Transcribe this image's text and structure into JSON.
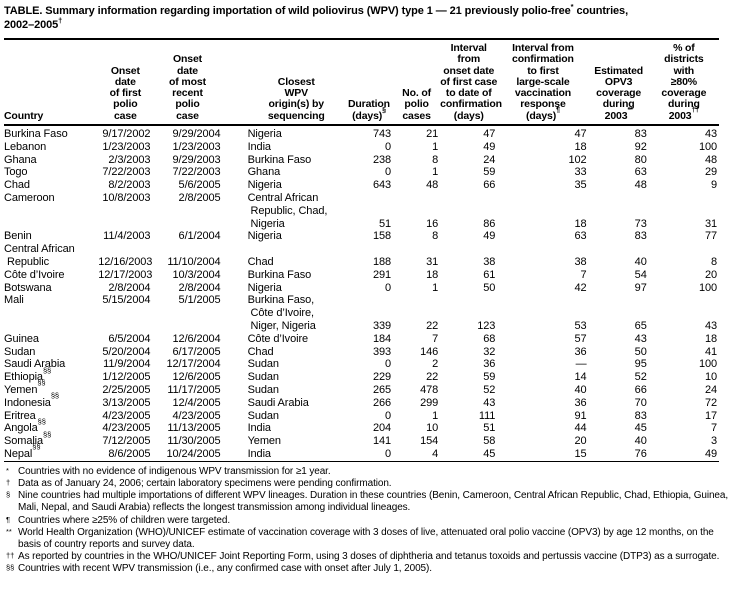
{
  "title": {
    "part1": "TABLE. Summary information regarding importation of wild poliovirus (WPV) type 1 — 21 previously polio-free",
    "sup1": "*",
    "part2": " countries,\n2002–2005",
    "sup2": "†"
  },
  "table": {
    "columns": [
      {
        "text": "Country",
        "sup": ""
      },
      {
        "text": "Onset\ndate\nof first\npolio\ncase",
        "sup": ""
      },
      {
        "text": "Onset\ndate\nof most\nrecent\npolio\ncase",
        "sup": ""
      },
      {
        "text": "Closest\nWPV\norigin(s) by\nsequencing",
        "sup": ""
      },
      {
        "text": "Duration\n(days)",
        "sup": "§"
      },
      {
        "text": "No. of\npolio\ncases",
        "sup": ""
      },
      {
        "text": "Interval\nfrom\nonset date\nof first case\nto date of\nconfirmation\n(days)",
        "sup": ""
      },
      {
        "text": "Interval from\nconfirmation\nto first\nlarge-scale\nvaccination\nresponse\n(days)",
        "sup": "¶"
      },
      {
        "text": "Estimated\nOPV3\ncoverage\nduring\n2003",
        "sup": "**"
      },
      {
        "text": "% of\ndistricts\nwith\n≥80%\ncoverage\nduring\n2003",
        "sup": "††"
      }
    ],
    "rows": [
      {
        "country": "Burkina Faso",
        "onset_first": "9/17/2002",
        "onset_recent": "9/29/2004",
        "origin": "Nigeria",
        "duration": "743",
        "cases": "21",
        "interval_confirm": "47",
        "interval_response": "47",
        "opv3": "83",
        "districts": "43"
      },
      {
        "country": "Lebanon",
        "onset_first": "1/23/2003",
        "onset_recent": "1/23/2003",
        "origin": "India",
        "duration": "0",
        "cases": "1",
        "interval_confirm": "49",
        "interval_response": "18",
        "opv3": "92",
        "districts": "100"
      },
      {
        "country": "Ghana",
        "onset_first": "2/3/2003",
        "onset_recent": "9/29/2003",
        "origin": "Burkina Faso",
        "duration": "238",
        "cases": "8",
        "interval_confirm": "24",
        "interval_response": "102",
        "opv3": "80",
        "districts": "48"
      },
      {
        "country": "Togo",
        "onset_first": "7/22/2003",
        "onset_recent": "7/22/2003",
        "origin": "Ghana",
        "duration": "0",
        "cases": "1",
        "interval_confirm": "59",
        "interval_response": "33",
        "opv3": "63",
        "districts": "29"
      },
      {
        "country": "Chad",
        "onset_first": "8/2/2003",
        "onset_recent": "5/6/2005",
        "origin": "Nigeria",
        "duration": "643",
        "cases": "48",
        "interval_confirm": "66",
        "interval_response": "35",
        "opv3": "48",
        "districts": "9"
      },
      {
        "country": "Cameroon",
        "onset_first": "10/8/2003",
        "onset_recent": "2/8/2005",
        "origin": "Central African\n Republic, Chad,\n Nigeria",
        "duration": "51",
        "cases": "16",
        "interval_confirm": "86",
        "interval_response": "18",
        "opv3": "73",
        "districts": "31",
        "rowClass": "v-bottom-nums"
      },
      {
        "country": "Benin",
        "onset_first": "11/4/2003",
        "onset_recent": "6/1/2004",
        "origin": "Nigeria",
        "duration": "158",
        "cases": "8",
        "interval_confirm": "49",
        "interval_response": "63",
        "opv3": "83",
        "districts": "77"
      },
      {
        "country": "Central African\n Republic",
        "onset_first": "12/16/2003",
        "onset_recent": "11/10/2004",
        "origin": "Chad",
        "duration": "188",
        "cases": "31",
        "interval_confirm": "38",
        "interval_response": "38",
        "opv3": "40",
        "districts": "8",
        "rowClass": "v-bottom-rest"
      },
      {
        "country": "Côte d’Ivoire",
        "onset_first": "12/17/2003",
        "onset_recent": "10/3/2004",
        "origin": "Burkina Faso",
        "duration": "291",
        "cases": "18",
        "interval_confirm": "61",
        "interval_response": "7",
        "opv3": "54",
        "districts": "20"
      },
      {
        "country": "Botswana",
        "onset_first": "2/8/2004",
        "onset_recent": "2/8/2004",
        "origin": "Nigeria",
        "duration": "0",
        "cases": "1",
        "interval_confirm": "50",
        "interval_response": "42",
        "opv3": "97",
        "districts": "100"
      },
      {
        "country": "Mali",
        "onset_first": "5/15/2004",
        "onset_recent": "5/1/2005",
        "origin": "Burkina Faso,\n Côte d’Ivoire,\n Niger, Nigeria",
        "duration": "339",
        "cases": "22",
        "interval_confirm": "123",
        "interval_response": "53",
        "opv3": "65",
        "districts": "43",
        "rowClass": "v-bottom-nums"
      },
      {
        "country": "Guinea",
        "onset_first": "6/5/2004",
        "onset_recent": "12/6/2004",
        "origin": "Côte d’Ivoire",
        "duration": "184",
        "cases": "7",
        "interval_confirm": "68",
        "interval_response": "57",
        "opv3": "43",
        "districts": "18"
      },
      {
        "country": "Sudan",
        "onset_first": "5/20/2004",
        "onset_recent": "6/17/2005",
        "origin": "Chad",
        "duration": "393",
        "cases": "146",
        "interval_confirm": "32",
        "interval_response": "36",
        "opv3": "50",
        "districts": "41"
      },
      {
        "country": "Saudi Arabia",
        "onset_first": "11/9/2004",
        "onset_recent": "12/17/2004",
        "origin": "Sudan",
        "duration": "0",
        "cases": "2",
        "interval_confirm": "36",
        "interval_response": "—",
        "opv3": "95",
        "districts": "100"
      },
      {
        "country": "Ethiopia",
        "country_sup": "§§",
        "onset_first": "1/12/2005",
        "onset_recent": "12/6/2005",
        "origin": "Sudan",
        "duration": "229",
        "cases": "22",
        "interval_confirm": "59",
        "interval_response": "14",
        "opv3": "52",
        "districts": "10"
      },
      {
        "country": "Yemen",
        "country_sup": "§§",
        "onset_first": "2/25/2005",
        "onset_recent": "11/17/2005",
        "origin": "Sudan",
        "duration": "265",
        "cases": "478",
        "interval_confirm": "52",
        "interval_response": "40",
        "opv3": "66",
        "districts": "24"
      },
      {
        "country": "Indonesia",
        "country_sup": "§§",
        "onset_first": "3/13/2005",
        "onset_recent": "12/4/2005",
        "origin": "Saudi Arabia",
        "duration": "266",
        "cases": "299",
        "interval_confirm": "43",
        "interval_response": "36",
        "opv3": "70",
        "districts": "72"
      },
      {
        "country": "Eritrea",
        "onset_first": "4/23/2005",
        "onset_recent": "4/23/2005",
        "origin": "Sudan",
        "duration": "0",
        "cases": "1",
        "interval_confirm": "111",
        "interval_response": "91",
        "opv3": "83",
        "districts": "17"
      },
      {
        "country": "Angola",
        "country_sup": "§§",
        "onset_first": "4/23/2005",
        "onset_recent": "11/13/2005",
        "origin": "India",
        "duration": "204",
        "cases": "10",
        "interval_confirm": "51",
        "interval_response": "44",
        "opv3": "45",
        "districts": "7"
      },
      {
        "country": "Somalia",
        "country_sup": "§§",
        "onset_first": "7/12/2005",
        "onset_recent": "11/30/2005",
        "origin": "Yemen",
        "duration": "141",
        "cases": "154",
        "interval_confirm": "58",
        "interval_response": "20",
        "opv3": "40",
        "districts": "3"
      },
      {
        "country": "Nepal",
        "country_sup": "§§",
        "onset_first": "8/6/2005",
        "onset_recent": "10/24/2005",
        "origin": "India",
        "duration": "0",
        "cases": "4",
        "interval_confirm": "45",
        "interval_response": "15",
        "opv3": "76",
        "districts": "49"
      }
    ]
  },
  "footnotes": [
    {
      "marker": "*",
      "text": "Countries with no evidence of indigenous WPV transmission for ≥1 year."
    },
    {
      "marker": "†",
      "text": "Data as of January 24, 2006; certain laboratory specimens were pending confirmation."
    },
    {
      "marker": "§",
      "text": "Nine countries had multiple importations of different WPV lineages. Duration in these countries (Benin, Cameroon, Central African Republic, Chad, Ethiopia, Guinea, Mali, Nepal, and Saudi Arabia) reflects the longest transmission among individual lineages."
    },
    {
      "marker": "¶",
      "text": "Countries where ≥25% of children were targeted."
    },
    {
      "marker": "**",
      "text": "World Health Organization (WHO)/UNICEF estimate of vaccination coverage with 3 doses of live, attenuated oral polio vaccine (OPV3) by age 12 months, on the basis of country reports and survey data."
    },
    {
      "marker": "††",
      "text": "As reported by countries in the WHO/UNICEF Joint Reporting Form, using 3 doses of diphtheria and tetanus toxoids and pertussis vaccine (DTP3) as a surrogate."
    },
    {
      "marker": "§§",
      "text": "Countries with recent WPV transmission (i.e., any confirmed case with onset after July 1, 2005)."
    }
  ]
}
